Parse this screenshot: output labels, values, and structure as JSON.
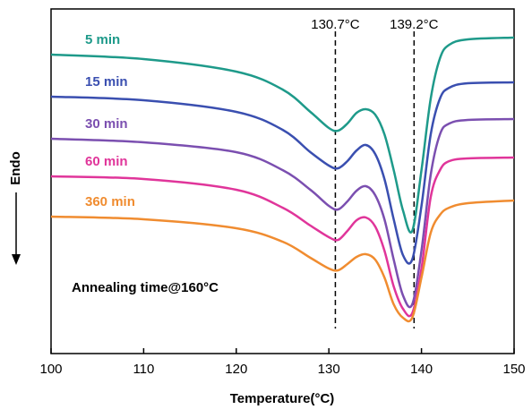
{
  "chart_data": {
    "type": "line",
    "xlabel": "Temperature(°C)",
    "ylabel": "Endo",
    "annotation": "Annealing time@160°C",
    "xlim": [
      100,
      150
    ],
    "xticks": [
      100,
      110,
      120,
      130,
      140,
      150
    ],
    "ylim": [
      0,
      385
    ],
    "x": [
      100,
      110,
      120,
      125,
      128,
      130,
      131,
      132,
      133,
      134,
      135,
      136,
      137,
      138,
      139,
      140,
      141,
      142,
      143,
      145,
      150
    ],
    "series": [
      {
        "name": "5 min",
        "color": "#1e9a8a",
        "values": [
          334,
          329,
          315,
          295,
          270,
          252,
          249,
          257,
          269,
          273,
          267,
          245,
          205,
          160,
          137,
          205,
          285,
          330,
          345,
          351,
          353
        ]
      },
      {
        "name": "15 min",
        "color": "#3a4fb0",
        "values": [
          287,
          283,
          270,
          250,
          225,
          210,
          207,
          215,
          227,
          233,
          223,
          195,
          150,
          110,
          105,
          165,
          245,
          285,
          297,
          302,
          303
        ]
      },
      {
        "name": "30 min",
        "color": "#7b4fb0",
        "values": [
          240,
          236,
          225,
          205,
          183,
          165,
          161,
          170,
          182,
          187,
          177,
          150,
          105,
          65,
          55,
          115,
          200,
          245,
          257,
          261,
          262
        ]
      },
      {
        "name": "60 min",
        "color": "#e0359a",
        "values": [
          198,
          195,
          183,
          163,
          143,
          130,
          127,
          137,
          149,
          152,
          142,
          115,
          75,
          50,
          45,
          95,
          175,
          205,
          215,
          218,
          219
        ]
      },
      {
        "name": "360 min",
        "color": "#f08c30",
        "values": [
          153,
          150,
          140,
          125,
          107,
          95,
          93,
          100,
          108,
          111,
          105,
          85,
          55,
          40,
          40,
          85,
          135,
          155,
          163,
          168,
          171
        ]
      }
    ],
    "vlines": [
      {
        "x": 130.7,
        "label": "130.7°C"
      },
      {
        "x": 139.2,
        "label": "139.2°C"
      }
    ]
  }
}
